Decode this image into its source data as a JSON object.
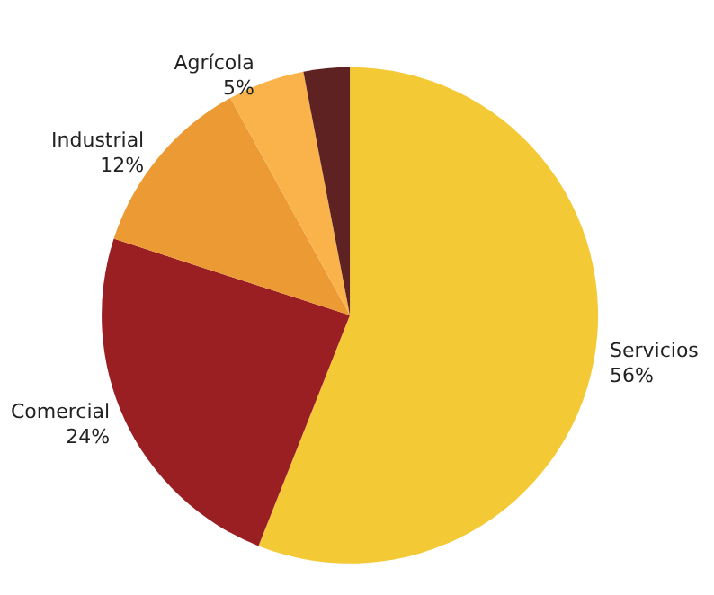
{
  "chart_data": {
    "type": "pie",
    "categories": [
      "Servicios",
      "Comercial",
      "Industrial",
      "Agrícola",
      null
    ],
    "values": [
      56,
      24,
      12,
      5,
      3
    ],
    "value_labels": [
      "56%",
      "24%",
      "12%",
      "5%",
      null
    ],
    "colors": [
      "#f3c935",
      "#9a1f22",
      "#ec9a33",
      "#fab34a",
      "#5e2222"
    ],
    "legend": false
  }
}
